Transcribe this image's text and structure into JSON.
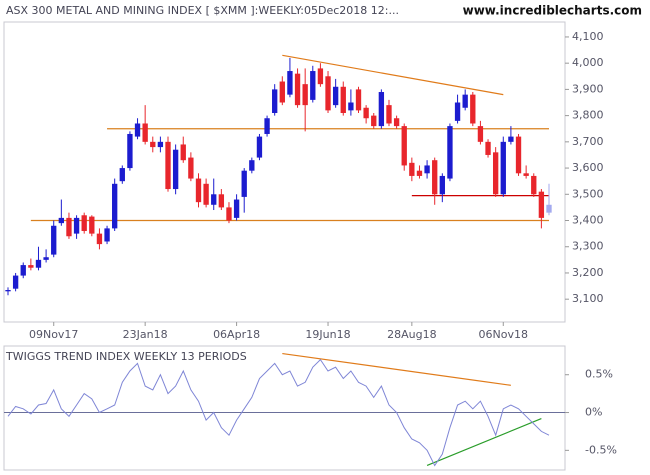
{
  "chart_data": [
    {
      "type": "candlestick",
      "title": "ASX 300 METAL AND MINING INDEX [ $XMM ]:WEEKLY:05Dec2018 12:...",
      "source": "www.incrediblecharts.com",
      "categories": [
        null,
        null,
        null,
        null,
        null,
        null,
        "09Nov17",
        null,
        null,
        null,
        null,
        null,
        null,
        null,
        null,
        null,
        null,
        null,
        "23Jan18",
        null,
        null,
        null,
        null,
        null,
        null,
        null,
        null,
        null,
        null,
        null,
        "06Apr18",
        null,
        null,
        null,
        null,
        null,
        null,
        null,
        null,
        null,
        null,
        null,
        "19Jun18",
        null,
        null,
        null,
        null,
        null,
        null,
        null,
        null,
        null,
        null,
        "28Aug18",
        null,
        null,
        null,
        null,
        null,
        null,
        null,
        null,
        null,
        null,
        null,
        "06Nov18",
        null,
        null,
        null,
        null,
        null,
        null
      ],
      "open": [
        3130,
        3140,
        3190,
        3230,
        3220,
        3250,
        3270,
        3390,
        3410,
        3350,
        3420,
        3415,
        3350,
        3320,
        3370,
        3550,
        3600,
        3720,
        3770,
        3700,
        3680,
        3700,
        3520,
        3690,
        3640,
        3560,
        3540,
        3460,
        3500,
        3450,
        3410,
        3490,
        3590,
        3640,
        3730,
        3810,
        3930,
        3880,
        3960,
        3920,
        3860,
        3980,
        3950,
        3840,
        3910,
        3820,
        3900,
        3830,
        3800,
        3760,
        3840,
        3790,
        3760,
        3620,
        3590,
        3580,
        3630,
        3500,
        3560,
        3780,
        3830,
        3880,
        3760,
        3700,
        3660,
        3500,
        3700,
        3720,
        3580,
        3570,
        3510,
        3430
      ],
      "high": [
        3145,
        3200,
        3240,
        3255,
        3300,
        3290,
        3400,
        3480,
        3430,
        3420,
        3430,
        3420,
        3370,
        3380,
        3560,
        3610,
        3740,
        3790,
        3840,
        3720,
        3720,
        3720,
        3690,
        3720,
        3660,
        3580,
        3560,
        3560,
        3520,
        3470,
        3500,
        3600,
        3640,
        3730,
        3800,
        3920,
        3950,
        4020,
        3980,
        3980,
        3990,
        4000,
        3970,
        3940,
        3930,
        3900,
        3910,
        3840,
        3810,
        3900,
        3860,
        3800,
        3770,
        3640,
        3610,
        3630,
        3640,
        3580,
        3770,
        3880,
        3900,
        3890,
        3780,
        3710,
        3680,
        3720,
        3760,
        3730,
        3610,
        3580,
        3520,
        3540
      ],
      "low": [
        3115,
        3130,
        3180,
        3210,
        3210,
        3240,
        3260,
        3380,
        3330,
        3330,
        3350,
        3340,
        3290,
        3310,
        3360,
        3540,
        3590,
        3710,
        3690,
        3660,
        3660,
        3510,
        3500,
        3620,
        3550,
        3450,
        3450,
        3440,
        3440,
        3390,
        3400,
        3430,
        3580,
        3630,
        3720,
        3800,
        3840,
        3870,
        3830,
        3740,
        3850,
        3910,
        3810,
        3830,
        3800,
        3800,
        3810,
        3770,
        3750,
        3750,
        3760,
        3750,
        3590,
        3550,
        3560,
        3560,
        3460,
        3470,
        3550,
        3770,
        3820,
        3760,
        3690,
        3640,
        3490,
        3490,
        3690,
        3570,
        3560,
        3490,
        3370,
        3420
      ],
      "close": [
        3135,
        3190,
        3230,
        3220,
        3250,
        3260,
        3380,
        3410,
        3340,
        3410,
        3360,
        3350,
        3310,
        3370,
        3540,
        3600,
        3730,
        3770,
        3700,
        3680,
        3700,
        3520,
        3670,
        3630,
        3560,
        3470,
        3460,
        3500,
        3450,
        3400,
        3480,
        3590,
        3630,
        3720,
        3790,
        3900,
        3850,
        3970,
        3840,
        3840,
        3970,
        3920,
        3820,
        3910,
        3810,
        3850,
        3820,
        3790,
        3760,
        3890,
        3770,
        3760,
        3610,
        3570,
        3570,
        3610,
        3500,
        3570,
        3760,
        3850,
        3880,
        3770,
        3700,
        3650,
        3500,
        3700,
        3720,
        3580,
        3570,
        3500,
        3410,
        3460
      ],
      "up_color": "#1c1ccf",
      "down_color": "#e8262c",
      "last_color": "#a3aaef",
      "ylim": [
        3013,
        4157
      ],
      "yticks": [
        {
          "value": 4100,
          "label": "4,100"
        },
        {
          "value": 4000,
          "label": "4,000"
        },
        {
          "value": 3900,
          "label": "3,900"
        },
        {
          "value": 3800,
          "label": "3,800"
        },
        {
          "value": 3700,
          "label": "3,700"
        },
        {
          "value": 3600,
          "label": "3,600"
        },
        {
          "value": 3500,
          "label": "3,500"
        },
        {
          "value": 3400,
          "label": "3,400"
        },
        {
          "value": 3300,
          "label": "3,300"
        },
        {
          "value": 3200,
          "label": "3,200"
        },
        {
          "value": 3100,
          "label": "3,100"
        }
      ],
      "trendlines": [
        {
          "from": [
            36,
            4030
          ],
          "to": [
            65,
            3880
          ],
          "color": "#e07b1a"
        },
        {
          "from": [
            13,
            3750
          ],
          "to": [
            71,
            3750
          ],
          "color": "#d9801f"
        },
        {
          "from": [
            3,
            3400
          ],
          "to": [
            71,
            3400
          ],
          "color": "#d9801f"
        },
        {
          "from": [
            53,
            3495
          ],
          "to": [
            71,
            3495
          ],
          "color": "#cc0000"
        }
      ]
    },
    {
      "type": "line",
      "title": "TWIGGS TREND INDEX WEEKLY 13 PERIODS",
      "values": [
        -0.05,
        0.08,
        0.05,
        -0.02,
        0.1,
        0.12,
        0.3,
        0.05,
        -0.05,
        0.1,
        0.25,
        0.18,
        0.0,
        0.05,
        0.1,
        0.4,
        0.55,
        0.65,
        0.35,
        0.3,
        0.5,
        0.25,
        0.35,
        0.55,
        0.3,
        0.15,
        -0.1,
        0.0,
        -0.2,
        -0.3,
        -0.1,
        0.05,
        0.2,
        0.45,
        0.55,
        0.65,
        0.5,
        0.55,
        0.35,
        0.4,
        0.6,
        0.7,
        0.55,
        0.6,
        0.45,
        0.55,
        0.4,
        0.35,
        0.2,
        0.35,
        0.1,
        0.0,
        -0.2,
        -0.35,
        -0.4,
        -0.5,
        -0.7,
        -0.55,
        -0.2,
        0.1,
        0.15,
        0.05,
        0.15,
        -0.05,
        -0.3,
        0.05,
        0.1,
        0.05,
        -0.05,
        -0.15,
        -0.25,
        -0.3
      ],
      "color": "#7f86d6",
      "zero_color": "#6a6f9a",
      "ylim": [
        -0.76,
        0.88
      ],
      "yticks": [
        {
          "value": 0.5,
          "label": "0.5%"
        },
        {
          "value": 0,
          "label": "0%"
        },
        {
          "value": -0.5,
          "label": "-0.5%"
        }
      ],
      "trendlines": [
        {
          "from": [
            36,
            0.78
          ],
          "to": [
            66,
            0.36
          ],
          "color": "#e07b1a"
        },
        {
          "from": [
            55,
            -0.7
          ],
          "to": [
            70,
            -0.08
          ],
          "color": "#2a9d2a"
        }
      ]
    }
  ]
}
